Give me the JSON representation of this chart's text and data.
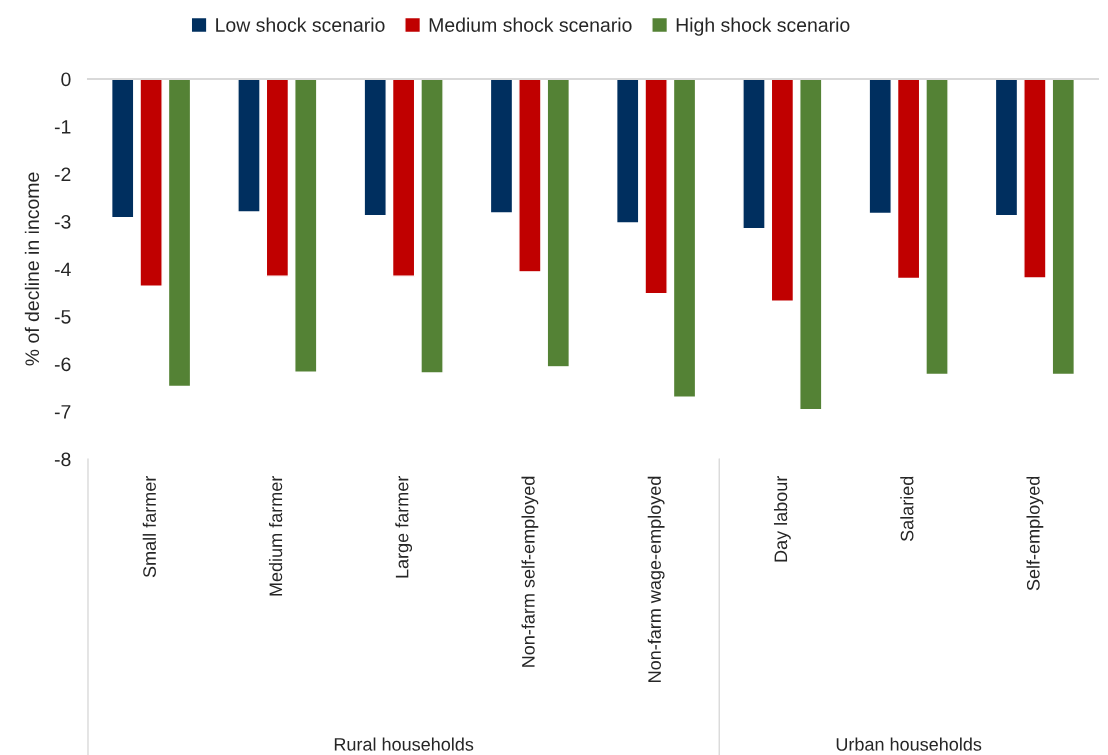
{
  "chart_data": {
    "type": "bar",
    "ylabel": "% of decline in income",
    "categories": [
      "Small farmer",
      "Medium farmer",
      "Large farmer",
      "Non-farm self-employed",
      "Non-farm wage-employed",
      "Day labour",
      "Salaried",
      "Self-employed"
    ],
    "series": [
      {
        "name": "Low shock scenario",
        "color": "#002f5f",
        "values": [
          -2.92,
          -2.8,
          -2.88,
          -2.82,
          -3.03,
          -3.15,
          -2.83,
          -2.88
        ]
      },
      {
        "name": "Medium shock scenario",
        "color": "#c00000",
        "values": [
          -4.36,
          -4.15,
          -4.15,
          -4.06,
          -4.52,
          -4.68,
          -4.2,
          -4.19
        ]
      },
      {
        "name": "High shock scenario",
        "color": "#548235",
        "values": [
          -6.47,
          -6.17,
          -6.19,
          -6.06,
          -6.7,
          -6.96,
          -6.22,
          -6.22
        ]
      }
    ],
    "ylim": [
      -8,
      0
    ],
    "yticks": [
      0,
      -1,
      -2,
      -3,
      -4,
      -5,
      -6,
      -7,
      -8
    ],
    "grid": false,
    "legend": "top",
    "annotations": [
      "Rural households",
      "Urban households"
    ]
  }
}
